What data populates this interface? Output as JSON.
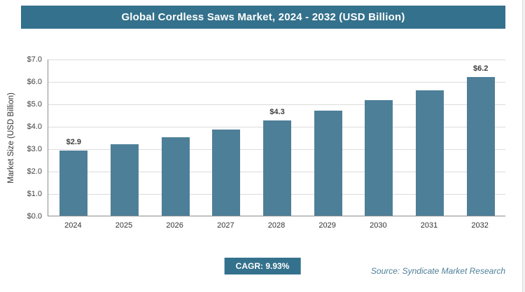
{
  "chart_data": {
    "type": "bar",
    "title": "Global Cordless Saws Market, 2024 - 2032 (USD Billion)",
    "categories": [
      "2024",
      "2025",
      "2026",
      "2027",
      "2028",
      "2029",
      "2030",
      "2031",
      "2032"
    ],
    "values": [
      2.9,
      3.2,
      3.5,
      3.85,
      4.25,
      4.7,
      5.15,
      5.6,
      6.2
    ],
    "point_labels": [
      "$2.9",
      "",
      "",
      "",
      "$4.3",
      "",
      "",
      "",
      "$6.2"
    ],
    "xlabel": "",
    "ylabel": "Market Size (USD Billion)",
    "ylim": [
      0,
      7
    ],
    "yticks": [
      0,
      1,
      2,
      3,
      4,
      5,
      6,
      7
    ],
    "ytick_labels": [
      "$0.0",
      "$1.0",
      "$2.0",
      "$3.0",
      "$4.0",
      "$5.0",
      "$6.0",
      "$7.0"
    ],
    "grid": true,
    "legend": false
  },
  "footer": {
    "cagr_label": "CAGR: 9.93%",
    "source": "Source: Syndicate Market Research"
  },
  "colors": {
    "header_bg": "#34718c",
    "bar": "#4e7f98",
    "badge_bg": "#34718c",
    "source_text": "#4e7f98",
    "gridline": "#dcdcdc"
  }
}
